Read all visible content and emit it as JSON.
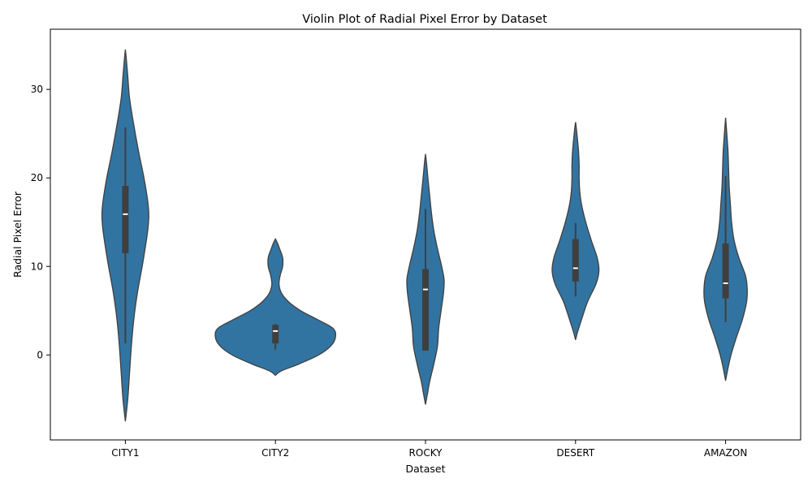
{
  "chart_data": {
    "type": "violin",
    "title": "Violin Plot of Radial Pixel Error by Dataset",
    "xlabel": "Dataset",
    "ylabel": "Radial Pixel Error",
    "ylim": [
      -9.6,
      36.8
    ],
    "yticks": [
      0,
      10,
      20,
      30
    ],
    "grid": false,
    "fill_color": "#3274a1",
    "edge_color": "#3f3f3f",
    "categories": [
      "CITY1",
      "CITY2",
      "ROCKY",
      "DESERT",
      "AMAZON"
    ],
    "violins": [
      {
        "name": "CITY1",
        "profile": [
          [
            -7.5,
            0.0
          ],
          [
            -5.0,
            0.04
          ],
          [
            -2.0,
            0.07
          ],
          [
            1.0,
            0.1
          ],
          [
            4.0,
            0.14
          ],
          [
            7.0,
            0.2
          ],
          [
            10.0,
            0.28
          ],
          [
            12.5,
            0.34
          ],
          [
            14.5,
            0.38
          ],
          [
            16.0,
            0.39
          ],
          [
            17.5,
            0.37
          ],
          [
            20.0,
            0.31
          ],
          [
            23.0,
            0.22
          ],
          [
            26.0,
            0.14
          ],
          [
            29.0,
            0.07
          ],
          [
            31.5,
            0.04
          ],
          [
            33.5,
            0.015
          ],
          [
            34.5,
            0.0
          ]
        ],
        "q1": 11.5,
        "median": 15.9,
        "q3": 19.1,
        "whisker_low": 1.3,
        "whisker_high": 25.7
      },
      {
        "name": "CITY2",
        "profile": [
          [
            -2.3,
            0.0
          ],
          [
            -1.8,
            0.1
          ],
          [
            -1.0,
            0.4
          ],
          [
            0.0,
            0.72
          ],
          [
            1.0,
            0.92
          ],
          [
            2.0,
            1.0
          ],
          [
            3.0,
            0.96
          ],
          [
            4.0,
            0.7
          ],
          [
            5.0,
            0.42
          ],
          [
            6.0,
            0.22
          ],
          [
            7.0,
            0.1
          ],
          [
            8.0,
            0.06
          ],
          [
            9.0,
            0.08
          ],
          [
            10.0,
            0.12
          ],
          [
            11.0,
            0.12
          ],
          [
            12.0,
            0.07
          ],
          [
            12.7,
            0.03
          ],
          [
            13.1,
            0.0
          ]
        ],
        "q1": 1.3,
        "median": 2.7,
        "q3": 3.4,
        "whisker_low": 0.6,
        "whisker_high": 3.5
      },
      {
        "name": "ROCKY",
        "profile": [
          [
            -5.6,
            0.0
          ],
          [
            -4.5,
            0.03
          ],
          [
            -3.0,
            0.07
          ],
          [
            -1.0,
            0.14
          ],
          [
            1.0,
            0.2
          ],
          [
            3.0,
            0.22
          ],
          [
            5.0,
            0.26
          ],
          [
            7.0,
            0.3
          ],
          [
            8.5,
            0.31
          ],
          [
            10.0,
            0.27
          ],
          [
            12.0,
            0.2
          ],
          [
            14.0,
            0.14
          ],
          [
            16.0,
            0.1
          ],
          [
            18.0,
            0.07
          ],
          [
            20.0,
            0.04
          ],
          [
            21.5,
            0.02
          ],
          [
            22.7,
            0.0
          ]
        ],
        "q1": 0.5,
        "median": 7.4,
        "q3": 9.7,
        "whisker_low": 0.5,
        "whisker_high": 16.5
      },
      {
        "name": "DESERT",
        "profile": [
          [
            1.7,
            0.0
          ],
          [
            2.5,
            0.03
          ],
          [
            4.0,
            0.1
          ],
          [
            6.0,
            0.2
          ],
          [
            8.0,
            0.34
          ],
          [
            9.5,
            0.39
          ],
          [
            11.0,
            0.36
          ],
          [
            13.0,
            0.26
          ],
          [
            15.0,
            0.17
          ],
          [
            17.0,
            0.1
          ],
          [
            18.5,
            0.07
          ],
          [
            20.0,
            0.06
          ],
          [
            21.5,
            0.06
          ],
          [
            23.0,
            0.05
          ],
          [
            24.5,
            0.03
          ],
          [
            25.8,
            0.01
          ],
          [
            26.3,
            0.0
          ]
        ],
        "q1": 8.3,
        "median": 9.8,
        "q3": 13.1,
        "whisker_low": 6.6,
        "whisker_high": 14.9
      },
      {
        "name": "AMAZON",
        "profile": [
          [
            -2.9,
            0.0
          ],
          [
            -1.5,
            0.04
          ],
          [
            0.0,
            0.09
          ],
          [
            2.0,
            0.18
          ],
          [
            4.0,
            0.28
          ],
          [
            6.0,
            0.35
          ],
          [
            7.5,
            0.36
          ],
          [
            9.0,
            0.33
          ],
          [
            11.0,
            0.22
          ],
          [
            13.0,
            0.14
          ],
          [
            15.0,
            0.1
          ],
          [
            17.0,
            0.08
          ],
          [
            19.0,
            0.06
          ],
          [
            21.0,
            0.05
          ],
          [
            23.0,
            0.04
          ],
          [
            25.0,
            0.02
          ],
          [
            26.8,
            0.0
          ]
        ],
        "q1": 6.4,
        "median": 8.1,
        "q3": 12.6,
        "whisker_low": 3.7,
        "whisker_high": 20.2
      }
    ]
  }
}
